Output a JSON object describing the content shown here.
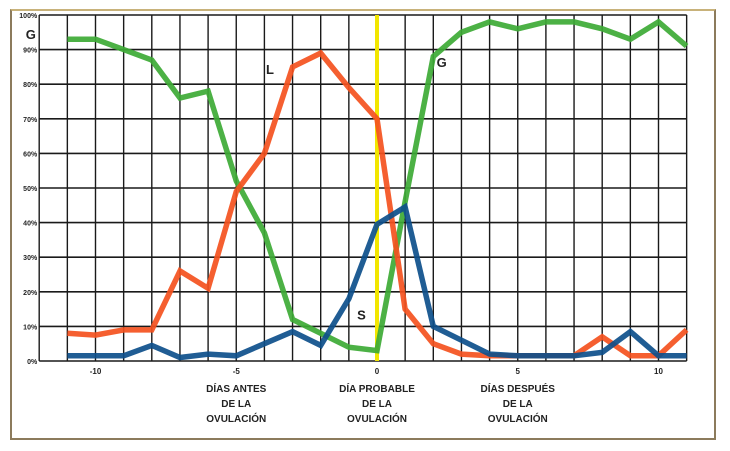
{
  "chart_data": {
    "type": "line",
    "title": "",
    "xlabel": "",
    "ylabel": "",
    "x": [
      -11,
      -10,
      -9,
      -8,
      -7,
      -6,
      -5,
      -4,
      -3,
      -2,
      -1,
      0,
      1,
      2,
      3,
      4,
      5,
      6,
      7,
      8,
      9,
      10,
      11
    ],
    "xlim": [
      -12,
      11
    ],
    "ylim": [
      0,
      100
    ],
    "y_ticks": [
      "0%",
      "10%",
      "20%",
      "30%",
      "40%",
      "50%",
      "60%",
      "70%",
      "80%",
      "90%",
      "100%"
    ],
    "x_ticks": [
      {
        "value": -10,
        "label": "-10"
      },
      {
        "value": -5,
        "label": "-5"
      },
      {
        "value": 0,
        "label": "0"
      },
      {
        "value": 5,
        "label": "5"
      },
      {
        "value": 10,
        "label": "10"
      }
    ],
    "grid": true,
    "reference_line": {
      "x": 0,
      "color": "#f2e600"
    },
    "series": [
      {
        "name": "G",
        "color": "#3daa35",
        "values": [
          93,
          93,
          90,
          87,
          76,
          78,
          52,
          37,
          12,
          8,
          4,
          3,
          46,
          88,
          95,
          98,
          96,
          98,
          98,
          96,
          93,
          98,
          91
        ],
        "label_pos": {
          "x": -12.3,
          "y": 93
        },
        "label_pos2": {
          "x": 2.3,
          "y": 85
        }
      },
      {
        "name": "L",
        "color": "#f4511e",
        "values": [
          8,
          7.5,
          9,
          9,
          26,
          21,
          49,
          60,
          85,
          89,
          79,
          70,
          15,
          5,
          2,
          1.5,
          1.5,
          1.5,
          1.5,
          7,
          1.5,
          1.5,
          9
        ],
        "label_pos": {
          "x": -3.8,
          "y": 83
        }
      },
      {
        "name": "S",
        "color": "#0d4f8b",
        "values": [
          1.5,
          1.5,
          1.5,
          4.5,
          1,
          2,
          1.5,
          5,
          8.5,
          4.5,
          18,
          39.5,
          44.5,
          10,
          6,
          2,
          1.5,
          1.5,
          1.5,
          2.5,
          8.5,
          1.5,
          1.5
        ],
        "label_pos": {
          "x": -0.55,
          "y": 12
        }
      }
    ],
    "captions": [
      {
        "x": -5,
        "lines": [
          "DÍAS ANTES",
          "DE LA",
          "OVULACIÓN"
        ]
      },
      {
        "x": 0,
        "lines": [
          "DÍA PROBABLE",
          "DE LA",
          "OVULACIÓN"
        ]
      },
      {
        "x": 5,
        "lines": [
          "DÍAS DESPUÉS",
          "DE LA",
          "OVULACIÓN"
        ]
      }
    ]
  }
}
